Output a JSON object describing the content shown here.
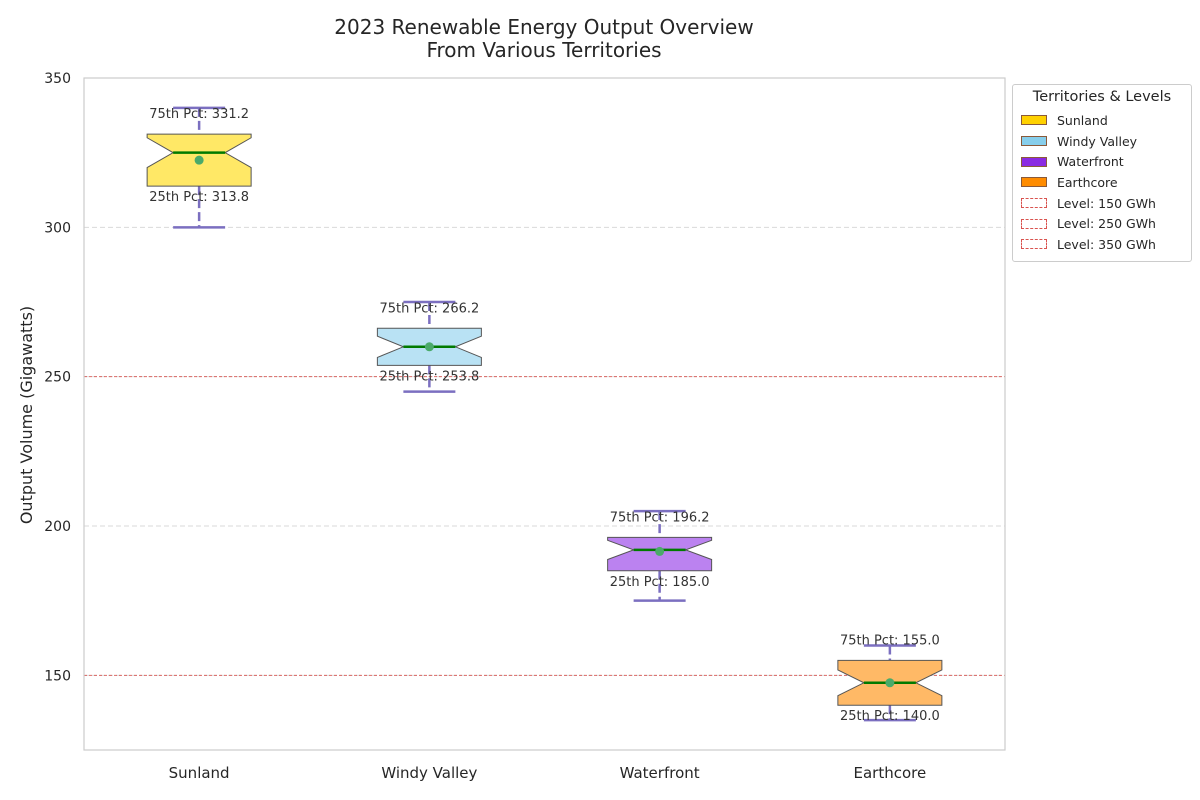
{
  "chart_data": {
    "type": "box",
    "title": "2023 Renewable Energy Output Overview",
    "subtitle": "From Various Territories",
    "xlabel": "",
    "ylabel": "Output Volume (Gigawatts)",
    "ylim": [
      125,
      350
    ],
    "y_ticks": [
      150,
      200,
      250,
      300,
      350
    ],
    "grid": true,
    "legend_title": "Territories & Levels",
    "legend_position": "outside-right",
    "categories": [
      "Sunland",
      "Windy Valley",
      "Waterfront",
      "Earthcore"
    ],
    "boxes": [
      {
        "name": "Sunland",
        "whisker_low": 300,
        "q1": 313.8,
        "median": 325,
        "q3": 331.2,
        "whisker_high": 340,
        "mean": 322.5,
        "q1_label": "25th Pct: 313.8",
        "q3_label": "75th Pct: 331.2",
        "color": "#ffe866",
        "legend_color": "#ffd100"
      },
      {
        "name": "Windy Valley",
        "whisker_low": 245,
        "q1": 253.8,
        "median": 260,
        "q3": 266.2,
        "whisker_high": 275,
        "mean": 260,
        "q1_label": "25th Pct: 253.8",
        "q3_label": "75th Pct: 266.2",
        "color": "#b9e2f4",
        "legend_color": "#87ceeb"
      },
      {
        "name": "Waterfront",
        "whisker_low": 175,
        "q1": 185,
        "median": 192,
        "q3": 196.2,
        "whisker_high": 205,
        "mean": 191.5,
        "q1_label": "25th Pct: 185.0",
        "q3_label": "75th Pct: 196.2",
        "color": "#bb82f0",
        "legend_color": "#8a2be2"
      },
      {
        "name": "Earthcore",
        "whisker_low": 135,
        "q1": 140,
        "median": 147.5,
        "q3": 155,
        "whisker_high": 160,
        "mean": 147.5,
        "q1_label": "25th Pct: 140.0",
        "q3_label": "75th Pct: 155.0",
        "color": "#ffb966",
        "legend_color": "#ff8c00"
      }
    ],
    "reference_lines": [
      {
        "value": 150,
        "label": "Level: 150 GWh"
      },
      {
        "value": 250,
        "label": "Level: 250 GWh"
      },
      {
        "value": 350,
        "label": "Level: 350 GWh"
      }
    ],
    "colors": {
      "whisker": "#7b6fc0",
      "median": "#007a00",
      "mean": "#4aaa6a",
      "reference_line": "#d9534f",
      "grid": "#d9d9d9",
      "box_edge": "#555555"
    }
  }
}
